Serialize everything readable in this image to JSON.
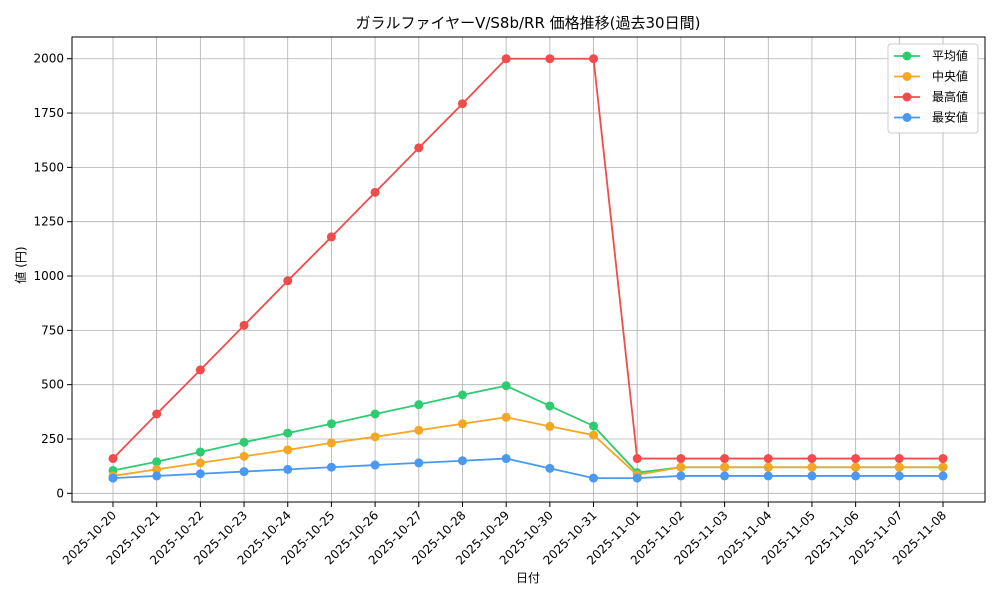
{
  "chart_data": {
    "type": "line",
    "title": "ガラルファイヤーV/S8b/RR 価格推移(過去30日間)",
    "xlabel": "日付",
    "ylabel": "値 (円)",
    "ylim": [
      -40,
      2100
    ],
    "yticks": [
      0,
      250,
      500,
      750,
      1000,
      1250,
      1500,
      1750,
      2000
    ],
    "grid": true,
    "legend_position": "top-right",
    "categories": [
      "2025-10-20",
      "2025-10-21",
      "2025-10-22",
      "2025-10-23",
      "2025-10-24",
      "2025-10-25",
      "2025-10-26",
      "2025-10-27",
      "2025-10-28",
      "2025-10-29",
      "2025-10-30",
      "2025-10-31",
      "2025-11-01",
      "2025-11-02",
      "2025-11-03",
      "2025-11-04",
      "2025-11-05",
      "2025-11-06",
      "2025-11-07",
      "2025-11-08"
    ],
    "series": [
      {
        "name": "平均値",
        "color": "#2ecc71",
        "values": [
          105,
          145,
          190,
          235,
          277,
          320,
          365,
          408,
          453,
          495,
          402,
          310,
          95,
          120,
          120,
          120,
          120,
          120,
          120,
          120
        ]
      },
      {
        "name": "中央値",
        "color": "#f5a623",
        "values": [
          80,
          110,
          140,
          170,
          200,
          232,
          260,
          290,
          320,
          350,
          308,
          268,
          85,
          120,
          120,
          120,
          120,
          120,
          120,
          120
        ]
      },
      {
        "name": "最高値",
        "color": "#f24b4b",
        "values": [
          160,
          365,
          568,
          773,
          978,
          1180,
          1385,
          1590,
          1793,
          2000,
          2000,
          2000,
          160,
          160,
          160,
          160,
          160,
          160,
          160,
          160
        ]
      },
      {
        "name": "最安値",
        "color": "#4a98f0",
        "values": [
          70,
          80,
          90,
          100,
          110,
          120,
          130,
          140,
          150,
          160,
          115,
          70,
          70,
          80,
          80,
          80,
          80,
          80,
          80,
          80
        ]
      }
    ]
  }
}
